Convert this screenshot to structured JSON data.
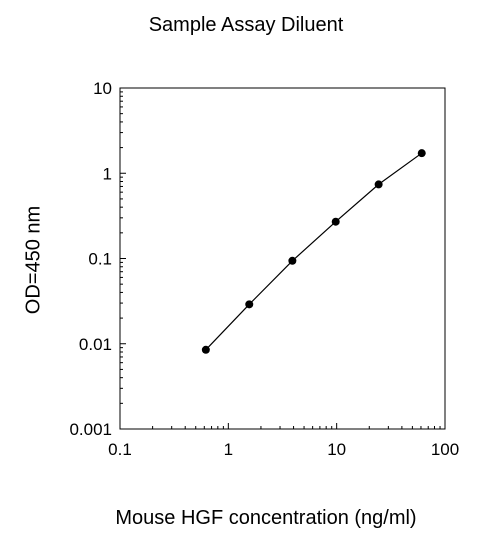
{
  "chart_data": {
    "type": "line",
    "title": "Sample Assay Diluent",
    "xlabel": "Mouse HGF concentration (ng/ml)",
    "ylabel": "OD=450 nm",
    "x_scale": "log",
    "y_scale": "log",
    "xlim": [
      0.1,
      100
    ],
    "ylim": [
      0.001,
      10
    ],
    "x_ticks": [
      0.1,
      1,
      10,
      100
    ],
    "x_tick_labels": [
      "0.1",
      "1",
      "10",
      "100"
    ],
    "y_ticks": [
      0.001,
      0.01,
      0.1,
      1,
      10
    ],
    "y_tick_labels": [
      "0.001",
      "0.01",
      "0.1",
      "1",
      "10"
    ],
    "grid": false,
    "legend": "none",
    "series": [
      {
        "x": [
          0.62,
          1.56,
          3.9,
          9.8,
          24.4,
          61
        ],
        "y": [
          0.0085,
          0.029,
          0.094,
          0.27,
          0.74,
          1.72
        ],
        "marker": "circle",
        "color": "#000000"
      }
    ]
  }
}
